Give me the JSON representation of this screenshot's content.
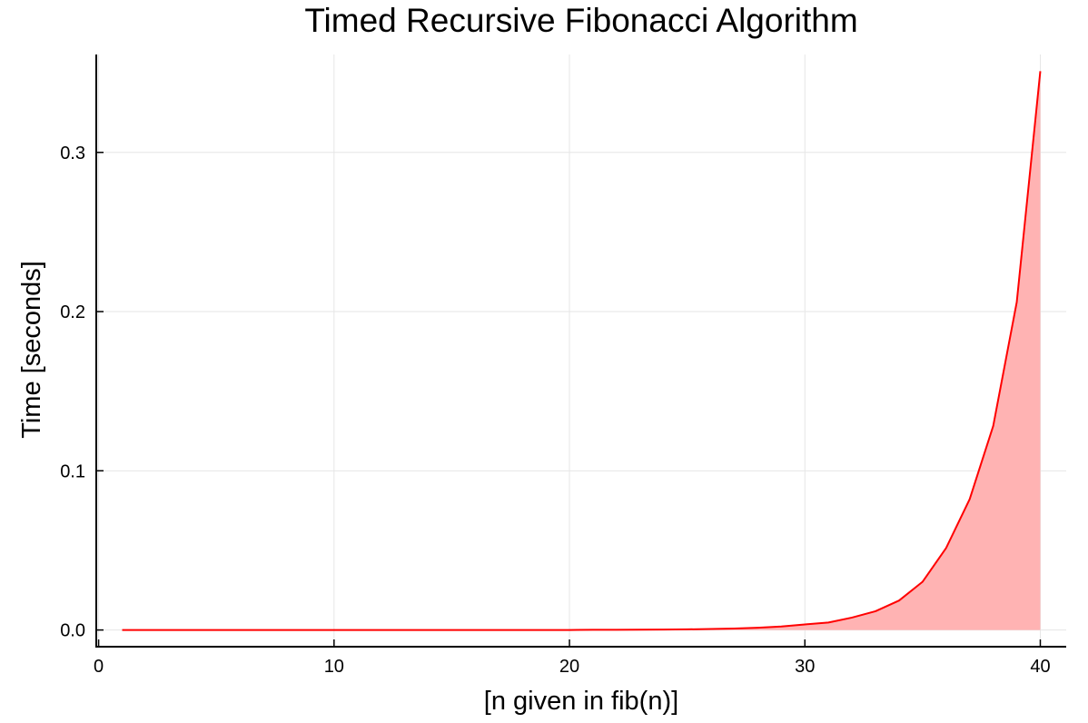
{
  "chart_data": {
    "type": "area",
    "title": "Timed Recursive Fibonacci Algorithm",
    "xlabel": "[n given in fib(n)]",
    "ylabel": "Time [seconds]",
    "xlim": [
      -0.1,
      41.1
    ],
    "ylim": [
      -0.0105,
      0.3615
    ],
    "xticks": [
      0,
      10,
      20,
      30,
      40
    ],
    "xtick_labels": [
      "0",
      "10",
      "20",
      "30",
      "40"
    ],
    "yticks": [
      0.0,
      0.1,
      0.2,
      0.3
    ],
    "ytick_labels": [
      "0.0",
      "0.1",
      "0.2",
      "0.3"
    ],
    "grid": true,
    "legend": "none",
    "series": [
      {
        "color": "#ff0000",
        "fill_color": "#ffb3b3",
        "x": [
          1,
          2,
          3,
          4,
          5,
          6,
          7,
          8,
          9,
          10,
          11,
          12,
          13,
          14,
          15,
          16,
          17,
          18,
          19,
          20,
          21,
          22,
          23,
          24,
          25,
          26,
          27,
          28,
          29,
          30,
          31,
          32,
          33,
          34,
          35,
          36,
          37,
          38,
          39,
          40
        ],
        "y": [
          0,
          0,
          0,
          0,
          0,
          0,
          0,
          0,
          0,
          0,
          0,
          0,
          0,
          0,
          0,
          0,
          0,
          0,
          0,
          0,
          0.0001,
          0.0001,
          0.0002,
          0.0003,
          0.0004,
          0.0006,
          0.0009,
          0.0014,
          0.0022,
          0.0035,
          0.0047,
          0.0078,
          0.0118,
          0.0185,
          0.0303,
          0.0515,
          0.0822,
          0.1282,
          0.206,
          0.351
        ]
      }
    ]
  }
}
